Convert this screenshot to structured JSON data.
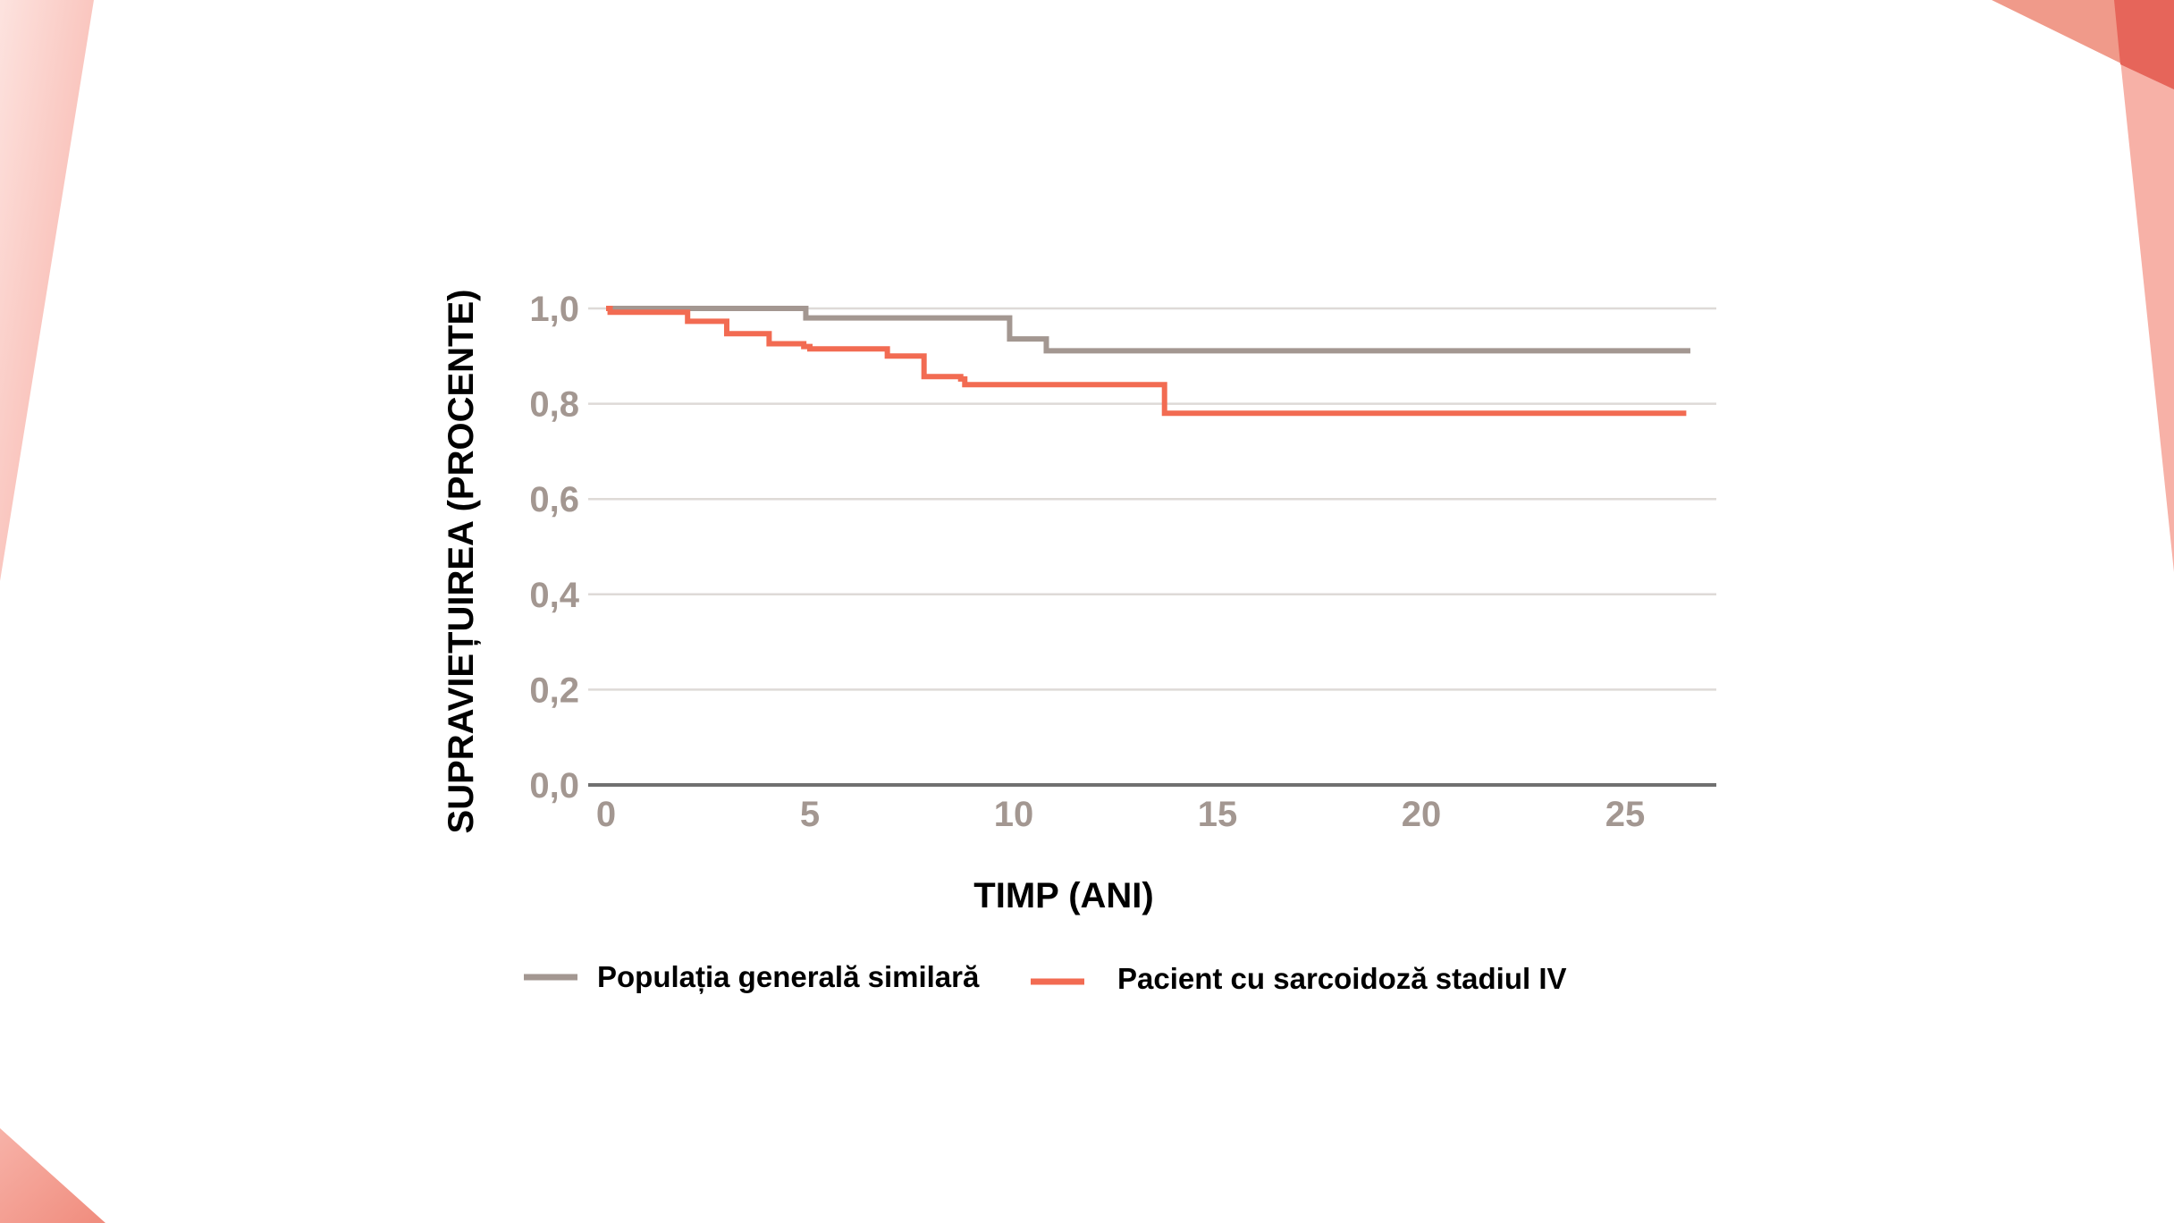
{
  "colors": {
    "general_population": "#a39791",
    "patient": "#f26b52",
    "accent": "#e8604f",
    "grid": "#dedad7",
    "axis": "#707070"
  },
  "chart_data": {
    "type": "line",
    "step": true,
    "title": "",
    "xlabel": "TIMP (ANI)",
    "ylabel": "SUPRAVIEȚUIREA (PROCENTE)",
    "xlim": [
      0,
      27
    ],
    "ylim": [
      0,
      1
    ],
    "xticks": [
      0,
      5,
      10,
      15,
      20,
      25
    ],
    "xtick_labels": [
      "0",
      "5",
      "10",
      "15",
      "20",
      "25"
    ],
    "yticks": [
      0,
      0.2,
      0.4,
      0.6,
      0.8,
      1.0
    ],
    "ytick_labels": [
      "0,0",
      "0,2",
      "0,4",
      "0,6",
      "0,8",
      "1,0"
    ],
    "grid": "horizontal",
    "legend_placement": "bottom",
    "series": [
      {
        "name": "Populația generală similară",
        "color": "#a39791",
        "x": [
          0,
          4.9,
          9.9,
          10.8,
          26.6
        ],
        "y": [
          1.0,
          0.98,
          0.936,
          0.911,
          0.911
        ]
      },
      {
        "name": "Pacient cu sarcoidoză stadiul IV",
        "color": "#f26b52",
        "x": [
          0,
          0.1,
          2.0,
          2.96,
          4.0,
          4.85,
          5.0,
          6.9,
          7.8,
          8.7,
          8.8,
          13.7,
          26.5
        ],
        "y": [
          1.0,
          0.992,
          0.973,
          0.947,
          0.926,
          0.92,
          0.915,
          0.9,
          0.857,
          0.852,
          0.84,
          0.78,
          0.78
        ]
      }
    ]
  }
}
